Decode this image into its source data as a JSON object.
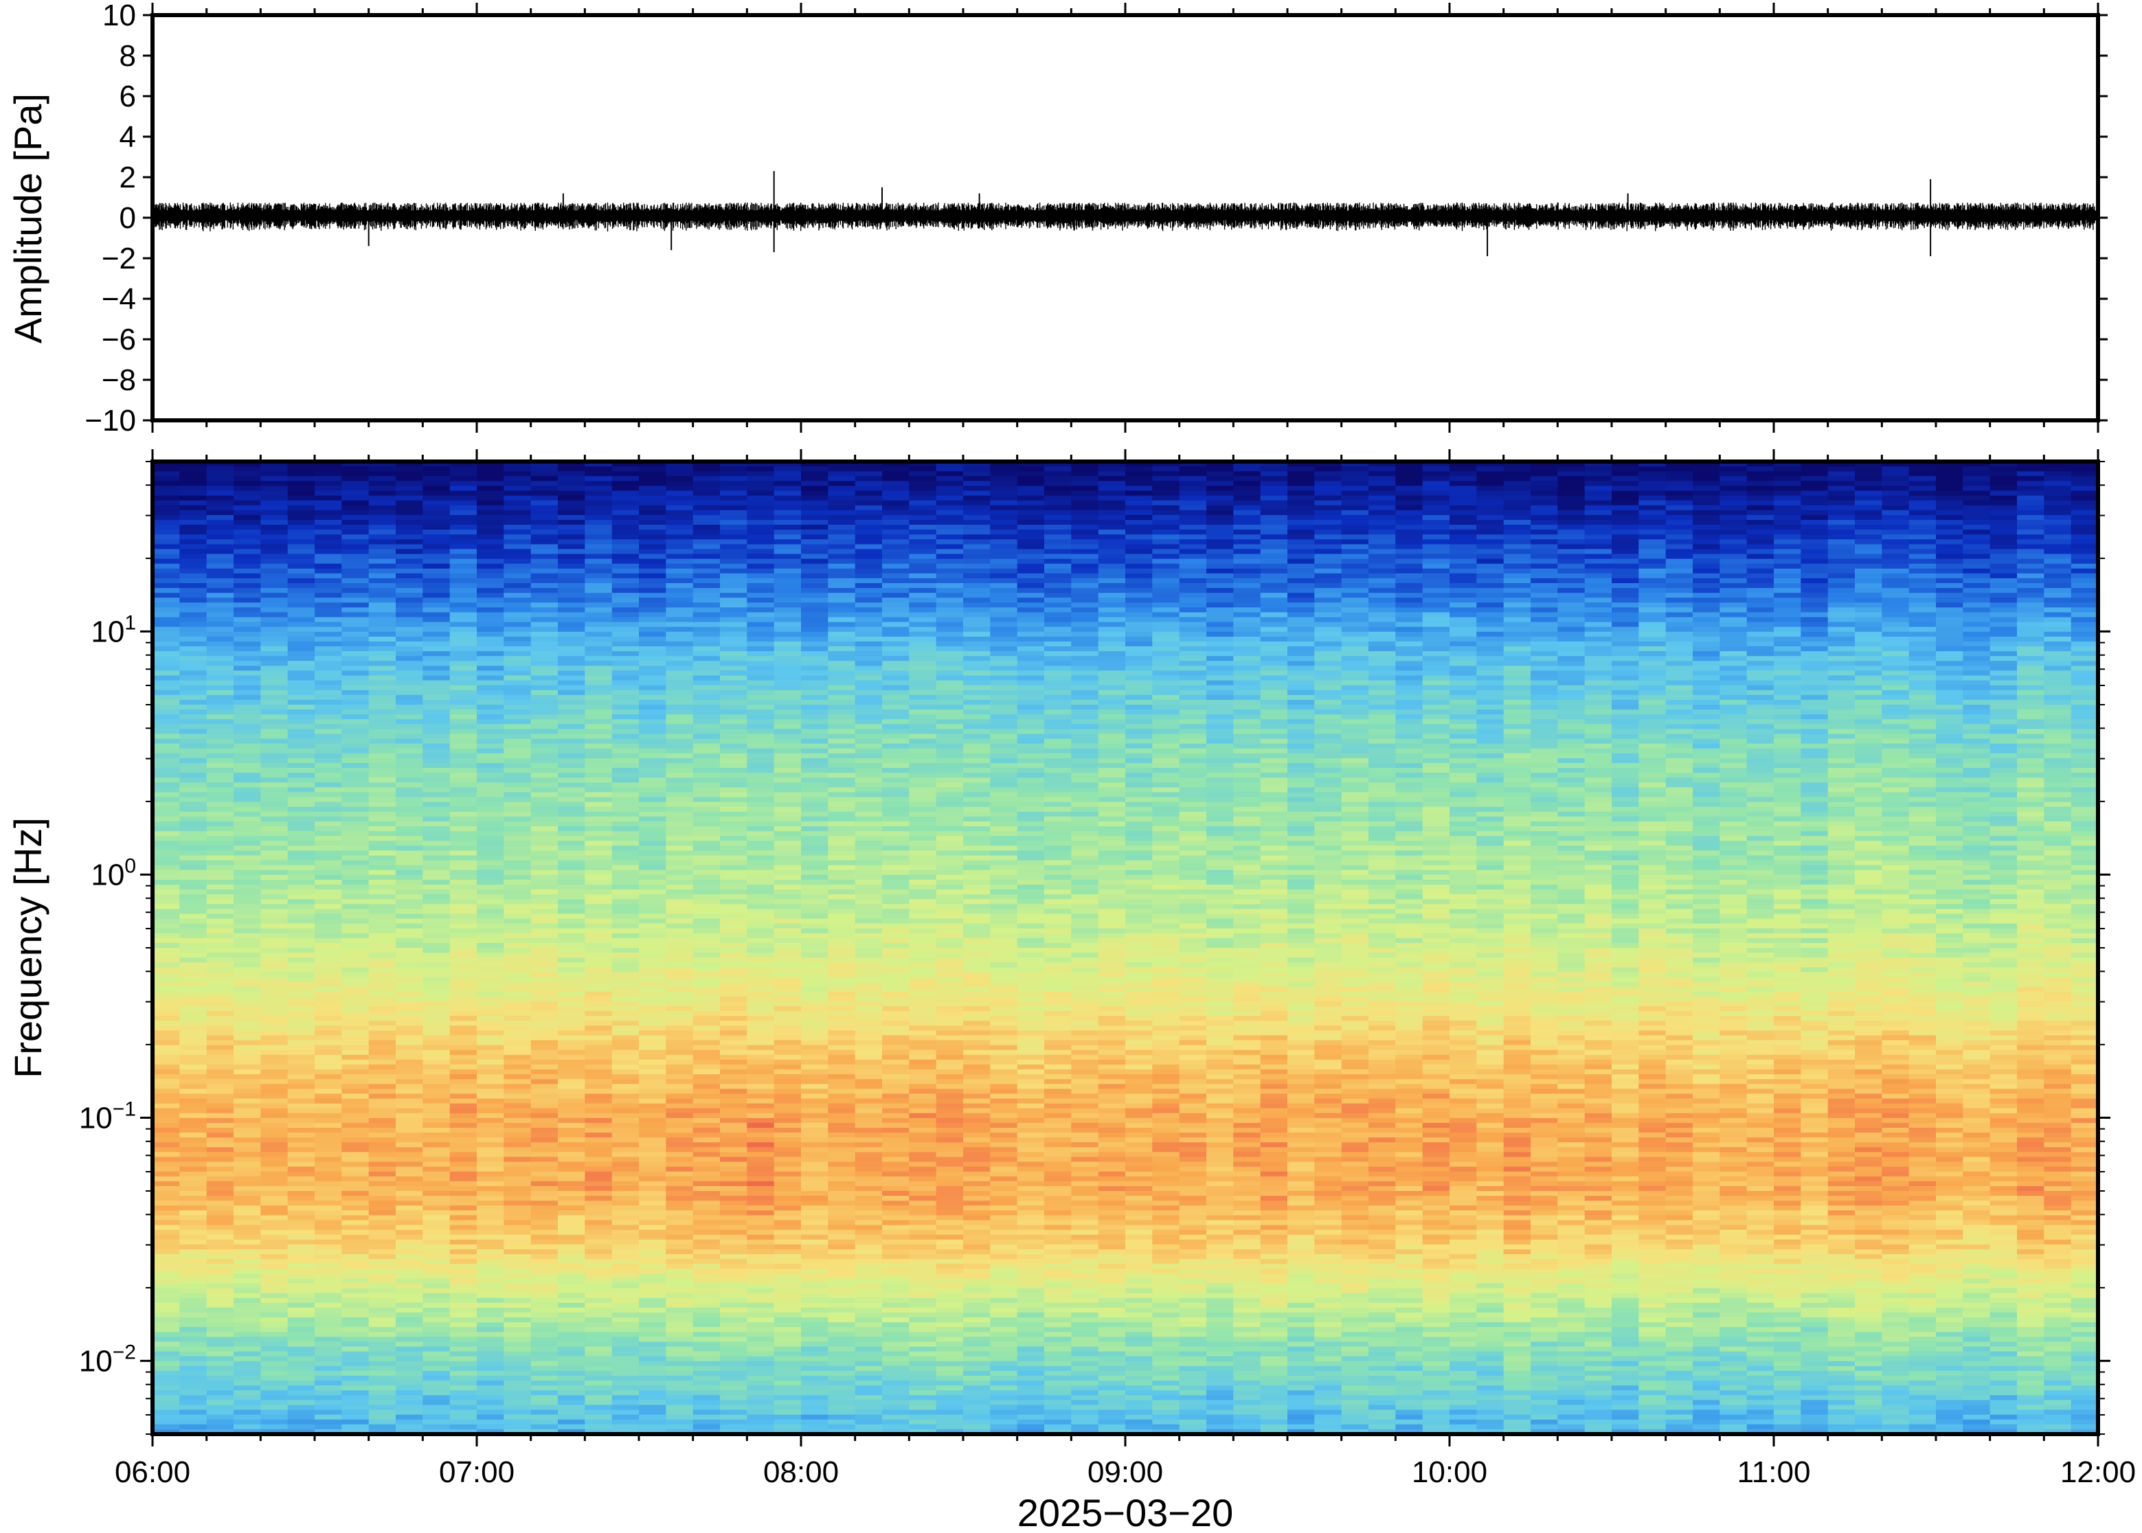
{
  "chart_data": [
    {
      "type": "line",
      "panel": "waveform",
      "ylabel": "Amplitude [Pa]",
      "ylim": [
        -10,
        10
      ],
      "yticks": [
        10,
        8,
        6,
        4,
        2,
        0,
        -2,
        -4,
        -6,
        -8,
        -10
      ],
      "ytick_labels": [
        "10",
        "8",
        "6",
        "4",
        "2",
        "0",
        "−2",
        "−4",
        "−6",
        "−8",
        "−10"
      ],
      "x_range": [
        "06:00",
        "12:00"
      ],
      "series": [
        {
          "color": "#000000",
          "baseline": 0.1,
          "typical_envelope": 0.5,
          "peaks": [
            {
              "x": "06:40",
              "y": -1.4
            },
            {
              "x": "07:16",
              "y": 1.2
            },
            {
              "x": "07:36",
              "y": -1.6
            },
            {
              "x": "07:55",
              "y": 2.3
            },
            {
              "x": "07:55",
              "y": -1.7
            },
            {
              "x": "08:15",
              "y": 1.5
            },
            {
              "x": "08:33",
              "y": 1.2
            },
            {
              "x": "10:07",
              "y": -1.9
            },
            {
              "x": "10:33",
              "y": 1.2
            },
            {
              "x": "11:29",
              "y": 1.9
            },
            {
              "x": "11:29",
              "y": -1.9
            }
          ]
        }
      ]
    },
    {
      "type": "heatmap",
      "panel": "spectrogram",
      "ylabel": "Frequency [Hz]",
      "yscale": "log",
      "ylim": [
        0.005,
        50
      ],
      "yticks": [
        10,
        1,
        0.1,
        0.01
      ],
      "ytick_labels": [
        {
          "base": "10",
          "exp": "1"
        },
        {
          "base": "10",
          "exp": "0"
        },
        {
          "base": "10",
          "exp": "−1"
        },
        {
          "base": "10",
          "exp": "−2"
        }
      ],
      "x_range": [
        "06:00",
        "12:00"
      ],
      "xtick_labels": [
        "06:00",
        "07:00",
        "08:00",
        "09:00",
        "10:00",
        "11:00",
        "12:00"
      ],
      "xlabel": "2025−03−20",
      "colormap": "rainbow",
      "colors": [
        "#0a0a6e",
        "#0b2fc0",
        "#2c86e8",
        "#5cc6ee",
        "#8ee3b0",
        "#d4f28a",
        "#f7e07a",
        "#f9a84e",
        "#ef5a4a"
      ],
      "intensity_profile": [
        {
          "freq": 50,
          "level": 0.0
        },
        {
          "freq": 30,
          "level": 0.1
        },
        {
          "freq": 15,
          "level": 0.22
        },
        {
          "freq": 8,
          "level": 0.36
        },
        {
          "freq": 3,
          "level": 0.48
        },
        {
          "freq": 1,
          "level": 0.55
        },
        {
          "freq": 0.5,
          "level": 0.62
        },
        {
          "freq": 0.3,
          "level": 0.7
        },
        {
          "freq": 0.2,
          "level": 0.78
        },
        {
          "freq": 0.1,
          "level": 0.86
        },
        {
          "freq": 0.05,
          "level": 0.86
        },
        {
          "freq": 0.03,
          "level": 0.78
        },
        {
          "freq": 0.02,
          "level": 0.64
        },
        {
          "freq": 0.012,
          "level": 0.5
        },
        {
          "freq": 0.005,
          "level": 0.34
        }
      ],
      "highlight": {
        "x": "07:55",
        "freq_range": [
          0.03,
          0.1
        ]
      }
    }
  ]
}
